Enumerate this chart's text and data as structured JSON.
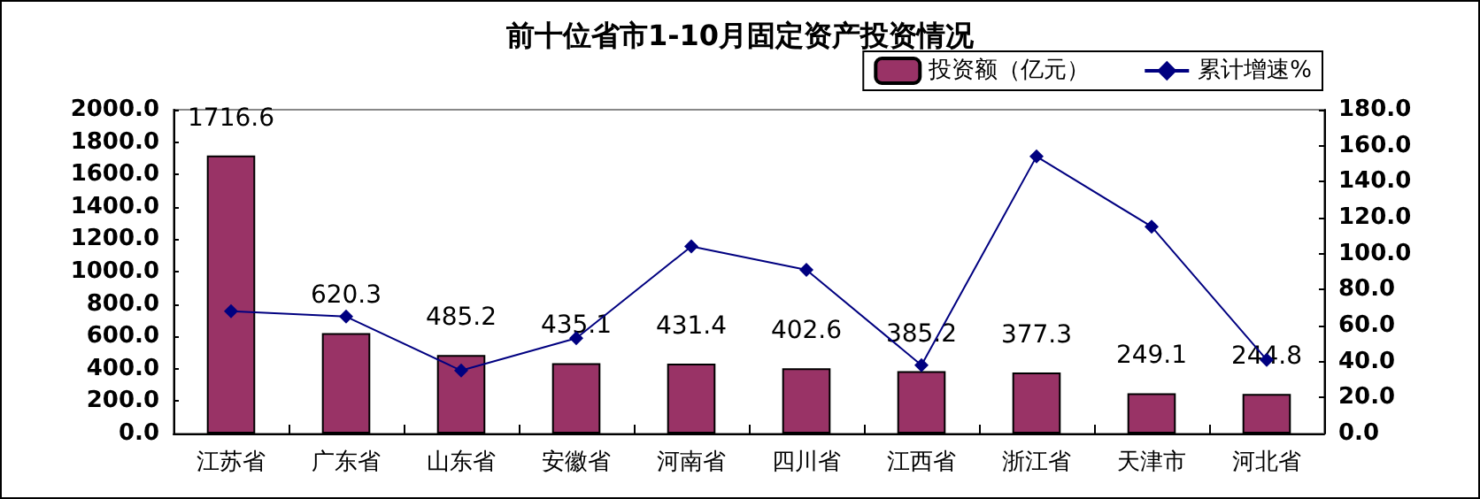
{
  "chart_data": {
    "type": "bar",
    "title": "前十位省市1-10月固定资产投资情况",
    "categories": [
      "江苏省",
      "广东省",
      "山东省",
      "安徽省",
      "河南省",
      "四川省",
      "江西省",
      "浙江省",
      "天津市",
      "河北省"
    ],
    "series": [
      {
        "name": "投资额（亿元）",
        "color": "#993366",
        "values": [
          1716.6,
          620.3,
          485.2,
          435.1,
          431.4,
          402.6,
          385.2,
          377.3,
          249.1,
          244.8
        ],
        "value_labels": [
          "1716.6",
          "620.3",
          "485.2",
          "435.1",
          "431.4",
          "402.6",
          "385.2",
          "377.3",
          "249.1",
          "244.8"
        ]
      },
      {
        "name": "累计增速%",
        "type": "line",
        "axis": "y2",
        "color": "#000080",
        "marker": "diamond",
        "values": [
          68,
          65,
          35,
          53,
          104,
          91,
          38,
          154,
          115,
          41
        ]
      }
    ],
    "ylim": [
      0,
      2000
    ],
    "yticks": [
      {
        "value": 0,
        "label": "0.0"
      },
      {
        "value": 200,
        "label": "200.0"
      },
      {
        "value": 400,
        "label": "400.0"
      },
      {
        "value": 600,
        "label": "600.0"
      },
      {
        "value": 800,
        "label": "800.0"
      },
      {
        "value": 1000,
        "label": "1000.0"
      },
      {
        "value": 1200,
        "label": "1200.0"
      },
      {
        "value": 1400,
        "label": "1400.0"
      },
      {
        "value": 1600,
        "label": "1600.0"
      },
      {
        "value": 1800,
        "label": "1800.0"
      },
      {
        "value": 2000,
        "label": "2000.0"
      }
    ],
    "y2lim": [
      0,
      180
    ],
    "y2ticks": [
      {
        "value": 0,
        "label": "0.0"
      },
      {
        "value": 20,
        "label": "20.0"
      },
      {
        "value": 40,
        "label": "40.0"
      },
      {
        "value": 60,
        "label": "60.0"
      },
      {
        "value": 80,
        "label": "80.0"
      },
      {
        "value": 100,
        "label": "100.0"
      },
      {
        "value": 120,
        "label": "120.0"
      },
      {
        "value": 140,
        "label": "140.0"
      },
      {
        "value": 160,
        "label": "160.0"
      },
      {
        "value": 180,
        "label": "180.0"
      }
    ],
    "grid": false,
    "legend": "top right"
  }
}
